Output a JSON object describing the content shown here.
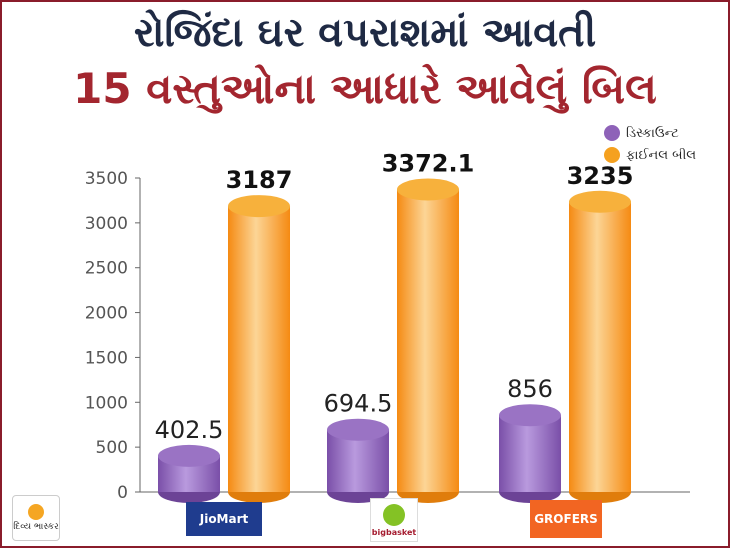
{
  "title_line1": "રોજિંદા ઘર વપરાશમાં આવતી",
  "title_line2": "15 વસ્તુઓના આધારે આવેલું બિલ",
  "legend": [
    {
      "label": "ડિસ્કાઉન્ટ",
      "color": "#8e62b8"
    },
    {
      "label": "ફાઈનલ બીલ",
      "color": "#f5a11f"
    }
  ],
  "brand_text": "દિવ્ય ભાસ્કર",
  "chart_data": {
    "type": "bar",
    "categories": [
      "JioMart",
      "bigbasket",
      "GROFERS"
    ],
    "series": [
      {
        "name": "ડિસ્કાઉન્ટ",
        "values": [
          402.5,
          694.5,
          856
        ]
      },
      {
        "name": "ફાઈનલ બીલ",
        "values": [
          3187,
          3372.1,
          3235
        ]
      }
    ],
    "value_labels": [
      [
        "402.5",
        "3187"
      ],
      [
        "694.5",
        "3372.1"
      ],
      [
        "856",
        "3235"
      ]
    ],
    "yticks": [
      "0",
      "500",
      "1000",
      "1500",
      "2000",
      "2500",
      "3000",
      "3500"
    ],
    "ylim": [
      0,
      3500
    ],
    "grid": false,
    "legend_position": "top-right"
  },
  "logos": [
    {
      "text": "JioMart",
      "bg": "#1f3c8e",
      "color": "#ffffff"
    },
    {
      "text": "bigbasket",
      "bg": "#ffffff",
      "color": "#a51c30"
    },
    {
      "text": "GROFERS",
      "bg": "#f26522",
      "color": "#ffffff"
    }
  ]
}
